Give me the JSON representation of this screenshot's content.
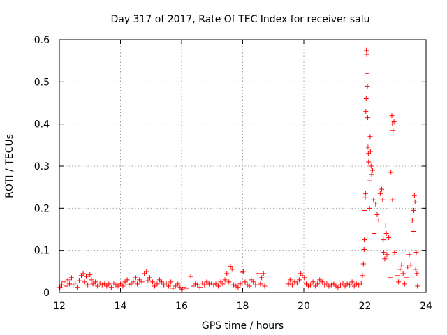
{
  "chart_data": {
    "type": "scatter",
    "title": "Day 317 of 2017, Rate Of TEC Index for receiver salu",
    "xlabel": "GPS time / hours",
    "ylabel": "ROTI / TECUs",
    "xlim": [
      12,
      24
    ],
    "ylim": [
      0,
      0.6
    ],
    "xticks": [
      "12",
      "14",
      "16",
      "18",
      "20",
      "22",
      "24"
    ],
    "yticks": [
      "0",
      "0.1",
      "0.2",
      "0.3",
      "0.4",
      "0.5",
      "0.6"
    ],
    "grid": true,
    "marker": "plus",
    "series": [
      {
        "name": "ROTI",
        "color": "#ff0000",
        "points": [
          [
            12.02,
            0.012
          ],
          [
            12.08,
            0.018
          ],
          [
            12.15,
            0.025
          ],
          [
            12.22,
            0.015
          ],
          [
            12.28,
            0.03
          ],
          [
            12.33,
            0.02
          ],
          [
            12.4,
            0.035
          ],
          [
            12.45,
            0.018
          ],
          [
            12.52,
            0.022
          ],
          [
            12.58,
            0.012
          ],
          [
            12.65,
            0.028
          ],
          [
            12.72,
            0.04
          ],
          [
            12.78,
            0.045
          ],
          [
            12.82,
            0.025
          ],
          [
            12.88,
            0.038
          ],
          [
            12.93,
            0.018
          ],
          [
            13.0,
            0.042
          ],
          [
            13.05,
            0.03
          ],
          [
            13.1,
            0.02
          ],
          [
            13.18,
            0.025
          ],
          [
            13.25,
            0.015
          ],
          [
            13.33,
            0.022
          ],
          [
            13.4,
            0.018
          ],
          [
            13.48,
            0.02
          ],
          [
            13.55,
            0.015
          ],
          [
            13.62,
            0.02
          ],
          [
            13.7,
            0.012
          ],
          [
            13.78,
            0.022
          ],
          [
            13.85,
            0.018
          ],
          [
            13.92,
            0.015
          ],
          [
            14.0,
            0.02
          ],
          [
            14.08,
            0.015
          ],
          [
            14.15,
            0.025
          ],
          [
            14.22,
            0.03
          ],
          [
            14.28,
            0.018
          ],
          [
            14.35,
            0.02
          ],
          [
            14.42,
            0.025
          ],
          [
            14.5,
            0.035
          ],
          [
            14.55,
            0.02
          ],
          [
            14.62,
            0.03
          ],
          [
            14.7,
            0.025
          ],
          [
            14.78,
            0.045
          ],
          [
            14.85,
            0.05
          ],
          [
            14.9,
            0.028
          ],
          [
            14.96,
            0.035
          ],
          [
            15.05,
            0.025
          ],
          [
            15.12,
            0.015
          ],
          [
            15.2,
            0.02
          ],
          [
            15.28,
            0.03
          ],
          [
            15.35,
            0.025
          ],
          [
            15.42,
            0.018
          ],
          [
            15.5,
            0.022
          ],
          [
            15.58,
            0.015
          ],
          [
            15.65,
            0.025
          ],
          [
            15.72,
            0.01
          ],
          [
            15.8,
            0.015
          ],
          [
            15.88,
            0.02
          ],
          [
            15.95,
            0.012
          ],
          [
            16.02,
            0.008
          ],
          [
            16.08,
            0.012
          ],
          [
            16.15,
            0.01
          ],
          [
            16.3,
            0.038
          ],
          [
            16.38,
            0.015
          ],
          [
            16.45,
            0.02
          ],
          [
            16.52,
            0.018
          ],
          [
            16.6,
            0.012
          ],
          [
            16.68,
            0.022
          ],
          [
            16.75,
            0.018
          ],
          [
            16.82,
            0.025
          ],
          [
            16.9,
            0.02
          ],
          [
            16.98,
            0.022
          ],
          [
            17.05,
            0.018
          ],
          [
            17.12,
            0.02
          ],
          [
            17.2,
            0.015
          ],
          [
            17.28,
            0.025
          ],
          [
            17.35,
            0.02
          ],
          [
            17.42,
            0.03
          ],
          [
            17.48,
            0.045
          ],
          [
            17.55,
            0.025
          ],
          [
            17.6,
            0.062
          ],
          [
            17.65,
            0.055
          ],
          [
            17.7,
            0.018
          ],
          [
            17.78,
            0.015
          ],
          [
            17.85,
            0.012
          ],
          [
            17.92,
            0.02
          ],
          [
            17.98,
            0.048
          ],
          [
            18.02,
            0.05
          ],
          [
            18.08,
            0.025
          ],
          [
            18.15,
            0.018
          ],
          [
            18.22,
            0.015
          ],
          [
            18.28,
            0.03
          ],
          [
            18.35,
            0.025
          ],
          [
            18.42,
            0.018
          ],
          [
            18.5,
            0.045
          ],
          [
            18.58,
            0.02
          ],
          [
            18.62,
            0.035
          ],
          [
            18.68,
            0.045
          ],
          [
            18.72,
            0.015
          ],
          [
            19.5,
            0.02
          ],
          [
            19.55,
            0.03
          ],
          [
            19.62,
            0.018
          ],
          [
            19.7,
            0.025
          ],
          [
            19.78,
            0.022
          ],
          [
            19.85,
            0.03
          ],
          [
            19.9,
            0.045
          ],
          [
            19.95,
            0.04
          ],
          [
            20.02,
            0.035
          ],
          [
            20.08,
            0.02
          ],
          [
            20.15,
            0.015
          ],
          [
            20.22,
            0.018
          ],
          [
            20.3,
            0.025
          ],
          [
            20.38,
            0.015
          ],
          [
            20.45,
            0.02
          ],
          [
            20.52,
            0.03
          ],
          [
            20.6,
            0.025
          ],
          [
            20.68,
            0.018
          ],
          [
            20.75,
            0.022
          ],
          [
            20.82,
            0.015
          ],
          [
            20.9,
            0.018
          ],
          [
            20.98,
            0.02
          ],
          [
            21.05,
            0.015
          ],
          [
            21.12,
            0.012
          ],
          [
            21.2,
            0.018
          ],
          [
            21.28,
            0.022
          ],
          [
            21.35,
            0.015
          ],
          [
            21.42,
            0.02
          ],
          [
            21.5,
            0.018
          ],
          [
            21.58,
            0.025
          ],
          [
            21.65,
            0.015
          ],
          [
            21.72,
            0.02
          ],
          [
            21.8,
            0.018
          ],
          [
            21.88,
            0.022
          ],
          [
            21.92,
            0.04
          ],
          [
            21.95,
            0.068
          ],
          [
            21.97,
            0.102
          ],
          [
            21.98,
            0.125
          ],
          [
            22.0,
            0.195
          ],
          [
            22.01,
            0.225
          ],
          [
            22.02,
            0.235
          ],
          [
            22.03,
            0.43
          ],
          [
            22.04,
            0.46
          ],
          [
            22.05,
            0.575
          ],
          [
            22.06,
            0.565
          ],
          [
            22.07,
            0.52
          ],
          [
            22.08,
            0.49
          ],
          [
            22.09,
            0.415
          ],
          [
            22.1,
            0.345
          ],
          [
            22.11,
            0.33
          ],
          [
            22.12,
            0.31
          ],
          [
            22.14,
            0.265
          ],
          [
            22.15,
            0.2
          ],
          [
            22.17,
            0.37
          ],
          [
            22.18,
            0.335
          ],
          [
            22.2,
            0.3
          ],
          [
            22.22,
            0.28
          ],
          [
            22.25,
            0.29
          ],
          [
            22.28,
            0.22
          ],
          [
            22.3,
            0.14
          ],
          [
            22.35,
            0.21
          ],
          [
            22.4,
            0.185
          ],
          [
            22.45,
            0.17
          ],
          [
            22.5,
            0.235
          ],
          [
            22.55,
            0.245
          ],
          [
            22.58,
            0.22
          ],
          [
            22.6,
            0.125
          ],
          [
            22.62,
            0.095
          ],
          [
            22.65,
            0.08
          ],
          [
            22.68,
            0.16
          ],
          [
            22.7,
            0.14
          ],
          [
            22.72,
            0.09
          ],
          [
            22.78,
            0.13
          ],
          [
            22.85,
            0.285
          ],
          [
            22.88,
            0.42
          ],
          [
            22.9,
            0.4
          ],
          [
            22.92,
            0.385
          ],
          [
            22.95,
            0.405
          ],
          [
            22.82,
            0.035
          ],
          [
            22.9,
            0.22
          ],
          [
            22.97,
            0.095
          ],
          [
            23.05,
            0.04
          ],
          [
            23.1,
            0.025
          ],
          [
            23.15,
            0.055
          ],
          [
            23.2,
            0.065
          ],
          [
            23.25,
            0.045
          ],
          [
            23.3,
            0.02
          ],
          [
            23.35,
            0.035
          ],
          [
            23.4,
            0.06
          ],
          [
            23.45,
            0.09
          ],
          [
            23.5,
            0.065
          ],
          [
            23.55,
            0.17
          ],
          [
            23.58,
            0.145
          ],
          [
            23.6,
            0.195
          ],
          [
            23.62,
            0.23
          ],
          [
            23.64,
            0.215
          ],
          [
            23.66,
            0.055
          ],
          [
            23.68,
            0.095
          ],
          [
            23.7,
            0.045
          ],
          [
            23.72,
            0.015
          ]
        ]
      }
    ]
  }
}
